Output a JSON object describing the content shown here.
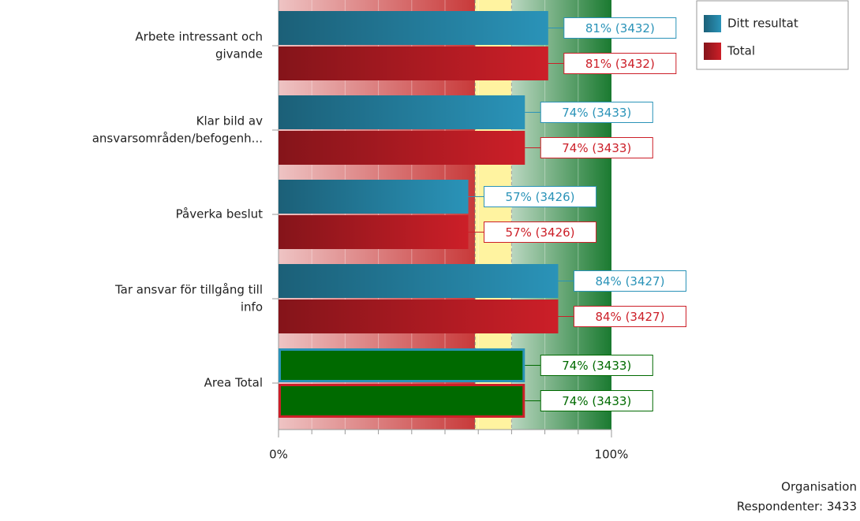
{
  "chart_data": {
    "type": "hbar",
    "categories": [
      [
        "Arbete intressant och",
        "givande"
      ],
      [
        "Klar bild av",
        "ansvarsområden/befogenh..."
      ],
      [
        "Påverka beslut"
      ],
      [
        "Tar ansvar för tillgång till",
        "info"
      ],
      [
        "Area Total"
      ]
    ],
    "series": [
      {
        "name": "Ditt resultat",
        "color": "#2a93b8",
        "values": [
          81,
          74,
          57,
          84,
          74
        ],
        "value_labels": [
          "81% (3432)",
          "74% (3433)",
          "57% (3426)",
          "84% (3427)",
          "74% (3433)"
        ]
      },
      {
        "name": "Total",
        "color": "#cc1f28",
        "values": [
          81,
          74,
          57,
          84,
          74
        ],
        "value_labels": [
          "81% (3432)",
          "74% (3433)",
          "57% (3426)",
          "84% (3427)",
          "74% (3433)"
        ]
      }
    ],
    "total_color": "#006a00",
    "xlim": [
      0,
      100
    ],
    "xticks": [
      {
        "value": 0,
        "label": "0%"
      },
      {
        "value": 100,
        "label": "100%"
      }
    ],
    "zones": [
      {
        "from": 0,
        "to": 59,
        "color": "#c83a3a"
      },
      {
        "from": 59,
        "to": 70,
        "color": "#fff3a0"
      },
      {
        "from": 70,
        "to": 100,
        "color": "#1a7a30"
      }
    ],
    "legend": "top-right",
    "footer": [
      "Organisation",
      "Respondenter: 3433"
    ]
  }
}
